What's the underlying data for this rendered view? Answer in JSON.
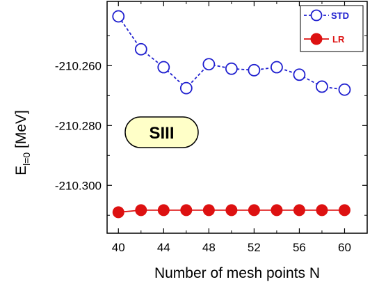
{
  "chart_data": {
    "type": "line",
    "xlabel": "Number of mesh points N",
    "ylabel": "E",
    "ylabel_sub": "l=0",
    "ylabel_unit": " [MeV]",
    "xlim": [
      39,
      62
    ],
    "ylim": [
      -210.316,
      -210.2385
    ],
    "xticks": [
      40,
      44,
      48,
      52,
      56,
      60
    ],
    "xtick_labels": [
      "40",
      "44",
      "48",
      "52",
      "56",
      "60"
    ],
    "yticks": [
      -210.26,
      -210.28,
      -210.3
    ],
    "ytick_labels": [
      "-210.260",
      "-210.280",
      "-210.300"
    ],
    "annotation": "SIII",
    "legend_position": "top-right",
    "grid": false,
    "series": [
      {
        "name": "STD",
        "color": "#1f1fcf",
        "marker": "open-circle",
        "line": "dashed",
        "x": [
          40,
          42,
          44,
          46,
          48,
          50,
          52,
          54,
          56,
          58,
          60
        ],
        "y": [
          -210.2435,
          -210.2545,
          -210.2605,
          -210.2675,
          -210.2595,
          -210.261,
          -210.2615,
          -210.2605,
          -210.263,
          -210.267,
          -210.268
        ]
      },
      {
        "name": "LR",
        "color": "#dd1111",
        "marker": "filled-circle",
        "line": "solid",
        "x": [
          40,
          42,
          44,
          46,
          48,
          50,
          52,
          54,
          56,
          58,
          60
        ],
        "y": [
          -210.309,
          -210.3083,
          -210.3083,
          -210.3083,
          -210.3083,
          -210.3083,
          -210.3083,
          -210.3083,
          -210.3083,
          -210.3083,
          -210.3083
        ]
      }
    ]
  }
}
